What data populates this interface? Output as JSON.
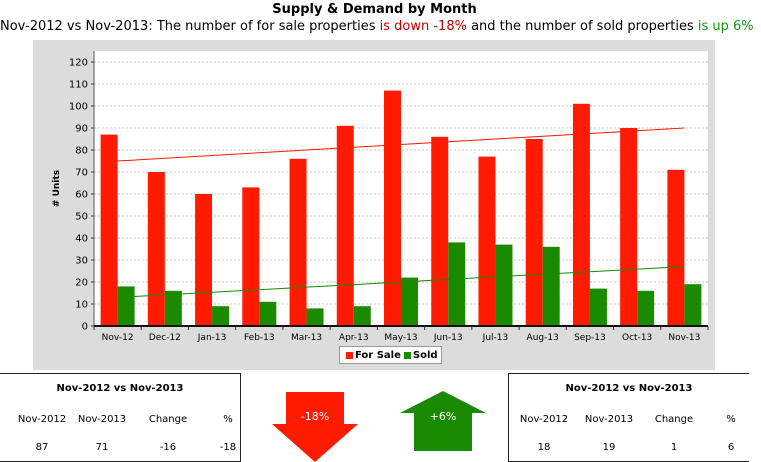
{
  "header": {
    "title": "Supply & Demand by Month",
    "subtitle_start": "Nov-2012 vs Nov-2013: The number of for sale properties ",
    "subtitle_down": "is down -18%",
    "subtitle_mid": " and the number of sold properties ",
    "subtitle_up": "is up 6%"
  },
  "chart_data": {
    "type": "bar",
    "title": "Supply & Demand by Month",
    "ylabel": "# Units",
    "xlabel": "",
    "ylim": [
      0,
      125
    ],
    "yticks": [
      0,
      10,
      20,
      30,
      40,
      50,
      60,
      70,
      80,
      90,
      100,
      110,
      120
    ],
    "grid": true,
    "legend_position": "bottom",
    "categories": [
      "Nov-12",
      "Dec-12",
      "Jan-13",
      "Feb-13",
      "Mar-13",
      "Apr-13",
      "May-13",
      "Jun-13",
      "Jul-13",
      "Aug-13",
      "Sep-13",
      "Oct-13",
      "Nov-13"
    ],
    "series": [
      {
        "name": "For Sale",
        "color": "#ff1a00",
        "values": [
          87,
          70,
          60,
          63,
          76,
          91,
          107,
          86,
          77,
          85,
          101,
          90,
          71
        ]
      },
      {
        "name": "Sold",
        "color": "#1a8a00",
        "values": [
          18,
          16,
          9,
          11,
          8,
          9,
          22,
          38,
          37,
          36,
          17,
          16,
          19
        ]
      }
    ],
    "trendlines": [
      {
        "series": "For Sale",
        "color": "#ff1a00",
        "start": 75,
        "end": 90
      },
      {
        "series": "Sold",
        "color": "#1a8a00",
        "start": 13,
        "end": 27
      }
    ]
  },
  "left_panel": {
    "title": "Nov-2012 vs Nov-2013",
    "headers": [
      "Nov-2012",
      "Nov-2013",
      "Change",
      "%"
    ],
    "values": [
      "87",
      "71",
      "-16",
      "-18"
    ],
    "arrow_label": "-18%",
    "arrow_color": "#ff1a00"
  },
  "right_panel": {
    "title": "Nov-2012 vs Nov-2013",
    "headers": [
      "Nov-2012",
      "Nov-2013",
      "Change",
      "%"
    ],
    "values": [
      "18",
      "19",
      "1",
      "6"
    ],
    "arrow_label": "+6%",
    "arrow_color": "#1a8a00"
  }
}
